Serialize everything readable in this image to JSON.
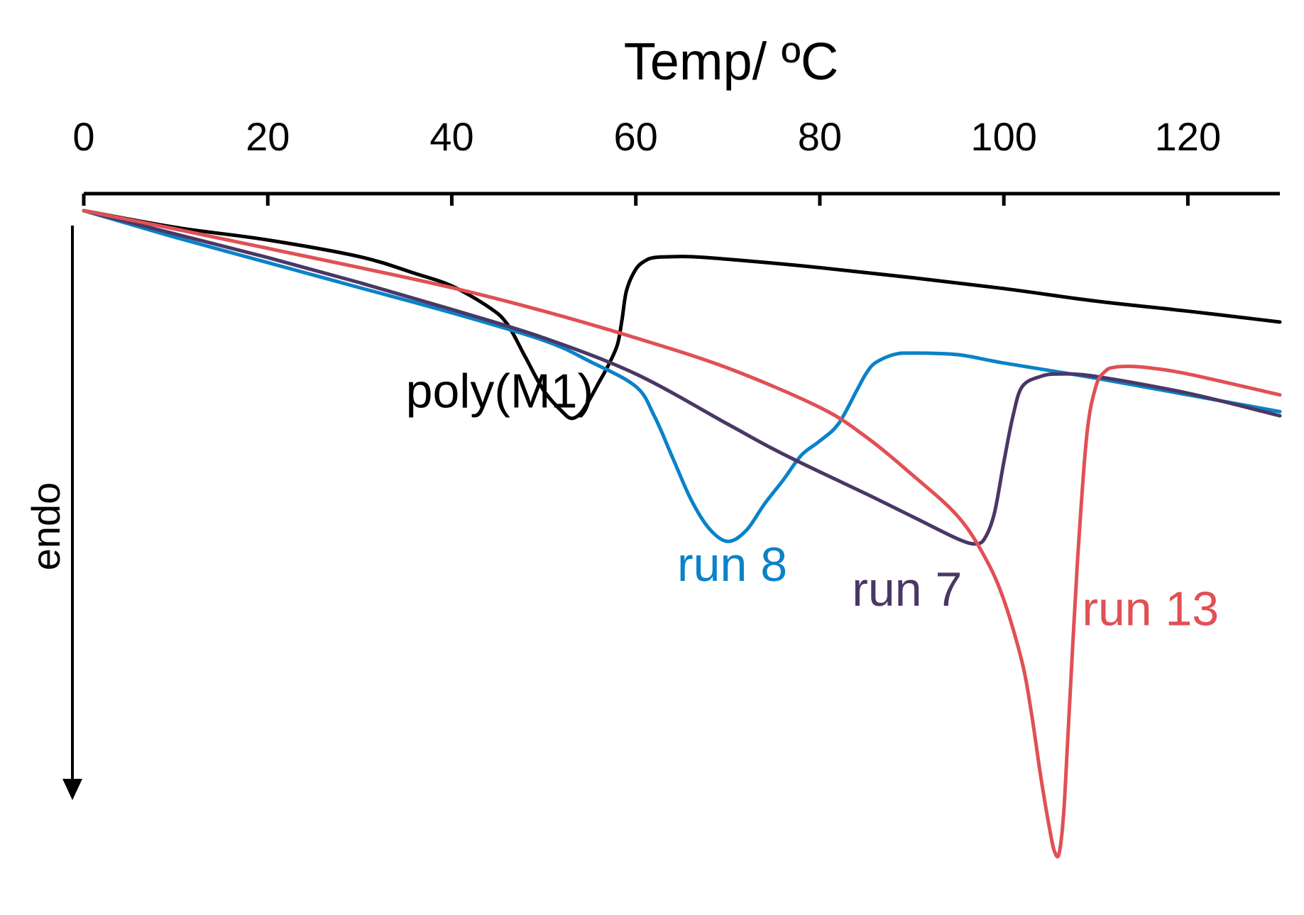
{
  "chart_data": {
    "type": "line",
    "title": "",
    "xlabel": "Temp/ ºC",
    "ylabel": "endo",
    "xlim": [
      0,
      130
    ],
    "ylim": [
      -8.2,
      0
    ],
    "x_ticks": [
      0,
      20,
      40,
      60,
      80,
      100,
      120
    ],
    "grid": false,
    "series": [
      {
        "name": "poly(M1)",
        "color": "#000000",
        "x": [
          0,
          10,
          20,
          30,
          36,
          40,
          44,
          46,
          48,
          50,
          52,
          53,
          54,
          55,
          56,
          57,
          58,
          58.5,
          59,
          60,
          61,
          62,
          64,
          66,
          70,
          80,
          90,
          100,
          110,
          120,
          130
        ],
        "y": [
          0,
          -0.2,
          -0.35,
          -0.55,
          -0.75,
          -0.9,
          -1.15,
          -1.35,
          -1.75,
          -2.15,
          -2.4,
          -2.48,
          -2.42,
          -2.25,
          -2.05,
          -1.85,
          -1.6,
          -1.3,
          -0.95,
          -0.7,
          -0.6,
          -0.56,
          -0.55,
          -0.55,
          -0.58,
          -0.68,
          -0.8,
          -0.93,
          -1.08,
          -1.2,
          -1.33
        ]
      },
      {
        "name": "run 8",
        "color": "#0a82c8",
        "x": [
          0,
          10,
          20,
          30,
          40,
          50,
          55,
          60,
          62,
          64,
          66,
          68,
          70,
          72,
          74,
          76,
          78,
          80,
          82,
          84,
          85,
          86,
          88,
          90,
          95,
          100,
          110,
          120,
          130
        ],
        "y": [
          0,
          -0.32,
          -0.62,
          -0.92,
          -1.22,
          -1.55,
          -1.8,
          -2.1,
          -2.45,
          -2.95,
          -3.45,
          -3.8,
          -3.95,
          -3.82,
          -3.5,
          -3.22,
          -2.92,
          -2.75,
          -2.55,
          -2.15,
          -1.95,
          -1.82,
          -1.72,
          -1.7,
          -1.72,
          -1.82,
          -2.0,
          -2.2,
          -2.4
        ]
      },
      {
        "name": "run 7",
        "color": "#4a3765",
        "x": [
          0,
          10,
          20,
          30,
          40,
          50,
          60,
          70,
          75,
          80,
          85,
          90,
          95,
          97,
          98,
          99,
          100,
          101,
          102,
          104,
          106,
          110,
          120,
          130
        ],
        "y": [
          0,
          -0.28,
          -0.56,
          -0.86,
          -1.18,
          -1.52,
          -1.95,
          -2.55,
          -2.85,
          -3.12,
          -3.38,
          -3.65,
          -3.92,
          -3.98,
          -3.9,
          -3.6,
          -3.0,
          -2.45,
          -2.1,
          -1.98,
          -1.95,
          -1.98,
          -2.18,
          -2.45
        ]
      },
      {
        "name": "run 13",
        "color": "#e05055",
        "x": [
          0,
          10,
          20,
          30,
          40,
          50,
          60,
          70,
          80,
          85,
          90,
          95,
          98,
          100,
          102,
          103,
          104,
          105,
          105.5,
          106,
          106.5,
          107,
          108,
          109,
          110,
          111,
          112,
          114,
          116,
          120,
          130
        ],
        "y": [
          0,
          -0.22,
          -0.45,
          -0.68,
          -0.92,
          -1.2,
          -1.52,
          -1.88,
          -2.35,
          -2.7,
          -3.15,
          -3.65,
          -4.15,
          -4.65,
          -5.4,
          -6.0,
          -6.75,
          -7.4,
          -7.65,
          -7.68,
          -7.2,
          -6.2,
          -4.2,
          -2.7,
          -2.1,
          -1.92,
          -1.87,
          -1.86,
          -1.88,
          -1.95,
          -2.2
        ]
      }
    ],
    "annotations": [
      {
        "series": "poly(M1)",
        "text": "poly(M1)",
        "x": 35,
        "y": -2.35
      },
      {
        "series": "run 8",
        "text": "run 8",
        "x": 64.5,
        "y": -4.42
      },
      {
        "series": "run 7",
        "text": "run 7",
        "x": 83.5,
        "y": -4.72
      },
      {
        "series": "run 13",
        "text": "run 13",
        "x": 108.5,
        "y": -4.95
      }
    ]
  }
}
